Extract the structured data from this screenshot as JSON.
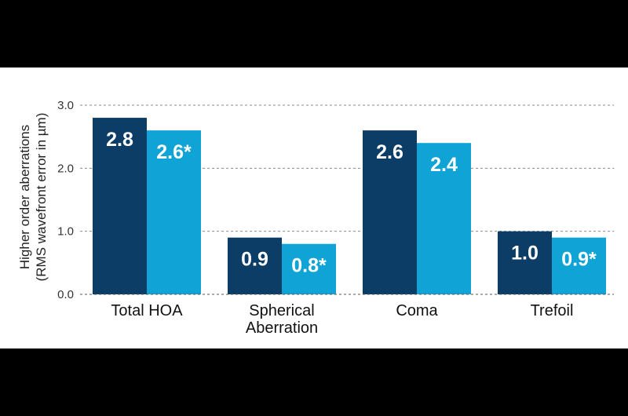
{
  "colors": {
    "series_dark": "#0b3d66",
    "series_light": "#0fa3d6",
    "grid": "#8a8a8a",
    "axis": "#555555",
    "background": "#ffffff"
  },
  "chart_data": {
    "type": "bar",
    "categories": [
      [
        "Total HOA"
      ],
      [
        "Spherical",
        "Aberration"
      ],
      [
        "Coma"
      ],
      [
        "Trefoil"
      ]
    ],
    "series": [
      {
        "values": [
          2.8,
          0.9,
          2.6,
          1.0
        ],
        "labels": [
          "2.8",
          "0.9",
          "2.6",
          "1.0"
        ]
      },
      {
        "values": [
          2.6,
          0.8,
          2.4,
          0.9
        ],
        "labels": [
          "2.6*",
          "0.8*",
          "2.4",
          "0.9*"
        ]
      }
    ],
    "ylabel": [
      "Higher order aberrations",
      "(RMS wavefront error in µm)"
    ],
    "ylim": [
      0,
      3.0
    ],
    "yticks": [
      0.0,
      1.0,
      2.0,
      3.0
    ],
    "ytick_labels": [
      "0.0",
      "1.0",
      "2.0",
      "3.0"
    ],
    "grid": true,
    "grid_style": "dashed"
  }
}
